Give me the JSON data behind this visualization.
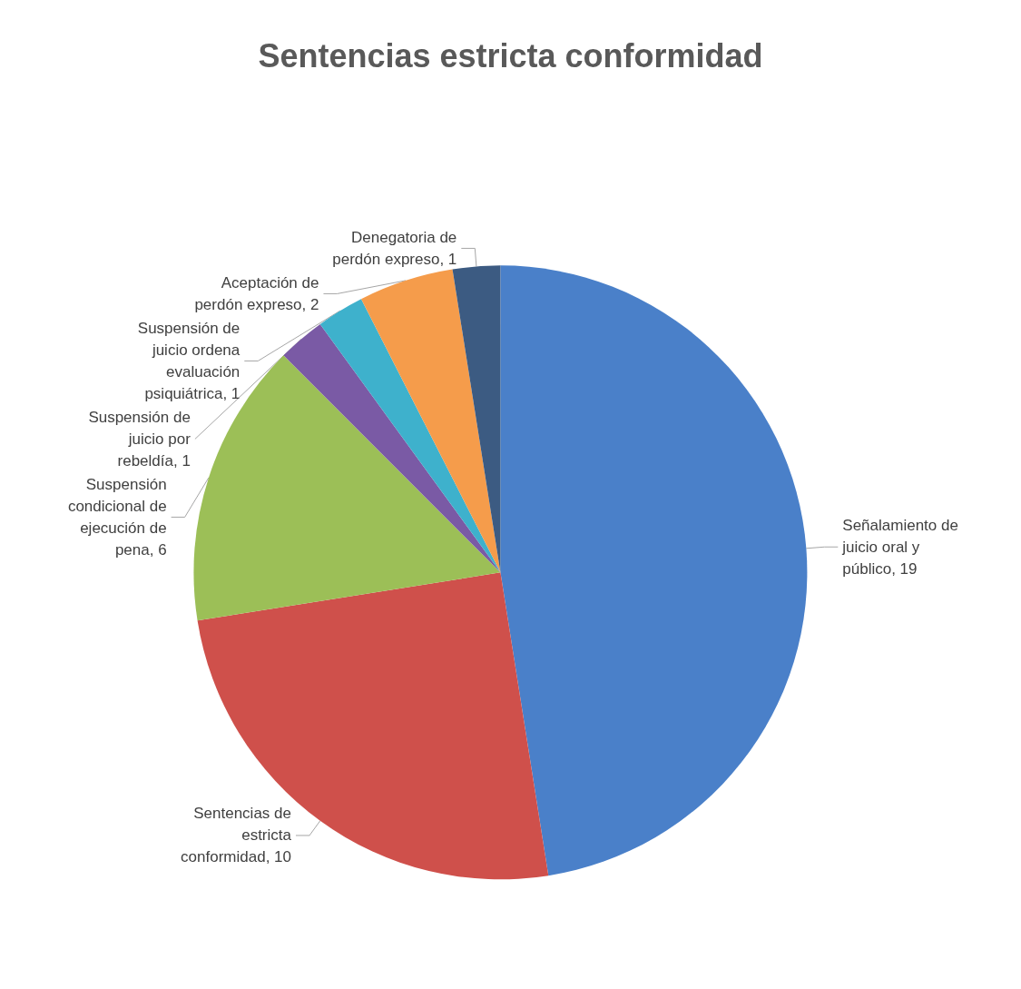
{
  "chart_data": {
    "type": "pie",
    "title": "Sentencias estricta conformidad",
    "categories": [
      "Señalamiento de juicio oral y público",
      "Sentencias de estricta conformidad",
      "Suspensión condicional de ejecución de pena",
      "Suspensión de juicio por rebeldía",
      "Suspensión de juicio ordena evaluación psiquiátrica",
      "Aceptación de perdón expreso",
      "Denegatoria de perdón expreso"
    ],
    "values": [
      19,
      10,
      6,
      1,
      1,
      2,
      1
    ],
    "colors": [
      "#4a80c9",
      "#cf504b",
      "#9cbf57",
      "#7a5aa5",
      "#3eb1cc",
      "#f59c4b",
      "#3c5b82"
    ],
    "value_labels": [
      "19",
      "10",
      "6",
      "1",
      "1",
      "2",
      "1"
    ],
    "legend": false
  }
}
